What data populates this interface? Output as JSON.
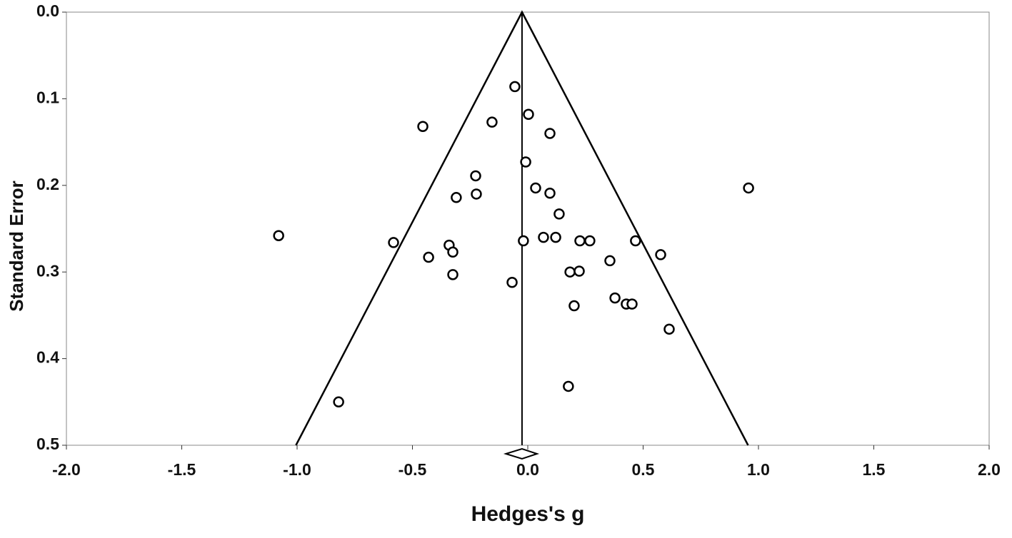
{
  "chart_data": {
    "type": "scatter",
    "x_label": "Hedges's g",
    "y_label": "Standard Error",
    "x": [
      -0.056,
      0.003,
      -0.455,
      -0.155,
      0.096,
      -0.009,
      -0.226,
      0.957,
      0.034,
      -0.223,
      0.096,
      -0.31,
      0.136,
      -1.08,
      -0.582,
      -0.341,
      -0.325,
      -0.43,
      -0.019,
      0.068,
      0.121,
      0.226,
      0.269,
      0.467,
      0.576,
      0.356,
      0.183,
      0.223,
      -0.325,
      -0.068,
      0.378,
      0.427,
      0.452,
      0.201,
      0.613,
      0.176,
      -0.82
    ],
    "values": [
      0.086,
      0.118,
      0.132,
      0.127,
      0.14,
      0.173,
      0.189,
      0.203,
      0.203,
      0.21,
      0.209,
      0.214,
      0.233,
      0.258,
      0.266,
      0.269,
      0.277,
      0.283,
      0.264,
      0.26,
      0.26,
      0.264,
      0.264,
      0.264,
      0.28,
      0.287,
      0.3,
      0.299,
      0.303,
      0.312,
      0.33,
      0.337,
      0.337,
      0.339,
      0.366,
      0.432,
      0.45
    ],
    "pooled_estimate": -0.025,
    "ci_lower": -0.095,
    "ci_upper": 0.04,
    "funnel_z": 1.96,
    "xlim": [
      -2,
      2
    ],
    "xticks": [
      {
        "value": -2,
        "label": "-2.0"
      },
      -1.5,
      {
        "value": -1,
        "label": "-1.0"
      },
      -0.5,
      {
        "value": 0,
        "label": "0.0"
      },
      0.5,
      {
        "value": 1,
        "label": "1.0"
      },
      1.5,
      {
        "value": 2,
        "label": "2.0"
      }
    ],
    "ylim": [
      0,
      0.5
    ],
    "y_inverted": true,
    "yticks": [
      {
        "value": 0,
        "label": "0.0"
      },
      0.1,
      0.2,
      0.3,
      0.4,
      0.5
    ],
    "grid": false,
    "color": "#000000"
  }
}
